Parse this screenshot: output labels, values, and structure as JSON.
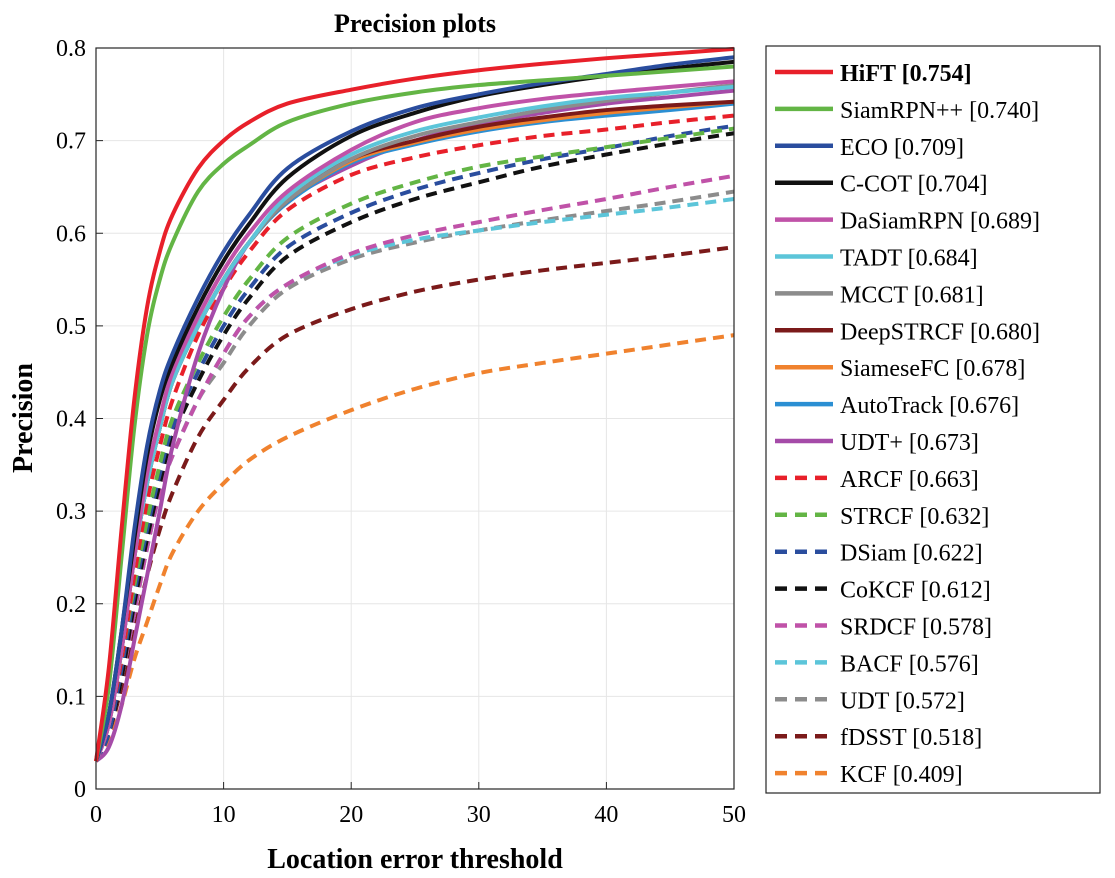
{
  "chart_data": {
    "type": "line",
    "title": "Precision plots",
    "xlabel": "Location error threshold",
    "ylabel": "Precision",
    "xlim": [
      0,
      50
    ],
    "ylim": [
      0,
      0.8
    ],
    "xticks": [
      "0",
      "10",
      "20",
      "30",
      "40",
      "50"
    ],
    "yticks": [
      "0",
      "0.1",
      "0.2",
      "0.3",
      "0.4",
      "0.5",
      "0.6",
      "0.7",
      "0.8"
    ],
    "grid": true,
    "legend_position": "right-outside",
    "x": [
      0,
      1,
      2,
      3,
      4,
      5,
      6,
      8,
      10,
      12,
      15,
      20,
      25,
      30,
      35,
      40,
      45,
      50
    ],
    "series": [
      {
        "name": "HiFT [0.754]",
        "color": "#e8202a",
        "dashed": false,
        "bold": true,
        "values": [
          0.03,
          0.13,
          0.28,
          0.42,
          0.52,
          0.58,
          0.62,
          0.67,
          0.7,
          0.72,
          0.74,
          0.755,
          0.767,
          0.776,
          0.783,
          0.789,
          0.794,
          0.799
        ]
      },
      {
        "name": "SiamRPN++ [0.740]",
        "color": "#63b545",
        "dashed": false,
        "values": [
          0.03,
          0.11,
          0.25,
          0.39,
          0.49,
          0.55,
          0.59,
          0.645,
          0.675,
          0.695,
          0.72,
          0.74,
          0.752,
          0.76,
          0.765,
          0.77,
          0.775,
          0.78
        ]
      },
      {
        "name": "ECO [0.709]",
        "color": "#2a4d9e",
        "dashed": false,
        "values": [
          0.03,
          0.08,
          0.17,
          0.28,
          0.37,
          0.43,
          0.47,
          0.53,
          0.58,
          0.62,
          0.67,
          0.71,
          0.735,
          0.75,
          0.762,
          0.772,
          0.782,
          0.79
        ]
      },
      {
        "name": "C-COT [0.704]",
        "color": "#111111",
        "dashed": false,
        "values": [
          0.03,
          0.08,
          0.17,
          0.27,
          0.36,
          0.42,
          0.46,
          0.52,
          0.57,
          0.61,
          0.66,
          0.705,
          0.73,
          0.748,
          0.76,
          0.77,
          0.778,
          0.785
        ]
      },
      {
        "name": "DaSiamRPN [0.689]",
        "color": "#c052a8",
        "dashed": false,
        "values": [
          0.03,
          0.07,
          0.15,
          0.25,
          0.34,
          0.4,
          0.45,
          0.51,
          0.56,
          0.6,
          0.645,
          0.69,
          0.72,
          0.735,
          0.745,
          0.752,
          0.758,
          0.764
        ]
      },
      {
        "name": "TADT [0.684]",
        "color": "#5cc5d9",
        "dashed": false,
        "values": [
          0.03,
          0.07,
          0.15,
          0.25,
          0.33,
          0.39,
          0.44,
          0.5,
          0.55,
          0.59,
          0.64,
          0.685,
          0.71,
          0.725,
          0.737,
          0.746,
          0.752,
          0.758
        ]
      },
      {
        "name": "MCCT [0.681]",
        "color": "#8c8c8c",
        "dashed": false,
        "values": [
          0.03,
          0.07,
          0.15,
          0.25,
          0.33,
          0.39,
          0.44,
          0.5,
          0.55,
          0.59,
          0.635,
          0.68,
          0.705,
          0.72,
          0.733,
          0.743,
          0.752,
          0.76
        ]
      },
      {
        "name": "DeepSTRCF [0.680]",
        "color": "#7b1a1a",
        "dashed": false,
        "values": [
          0.03,
          0.07,
          0.15,
          0.25,
          0.33,
          0.39,
          0.44,
          0.5,
          0.55,
          0.59,
          0.635,
          0.68,
          0.7,
          0.715,
          0.725,
          0.733,
          0.738,
          0.742
        ]
      },
      {
        "name": "SiameseFC [0.678]",
        "color": "#f0822e",
        "dashed": false,
        "values": [
          0.03,
          0.07,
          0.15,
          0.25,
          0.33,
          0.39,
          0.44,
          0.5,
          0.55,
          0.59,
          0.635,
          0.678,
          0.698,
          0.712,
          0.722,
          0.73,
          0.736,
          0.742
        ]
      },
      {
        "name": "AutoTrack [0.676]",
        "color": "#2b8fd3",
        "dashed": false,
        "values": [
          0.03,
          0.07,
          0.15,
          0.25,
          0.33,
          0.39,
          0.44,
          0.5,
          0.55,
          0.59,
          0.633,
          0.676,
          0.696,
          0.71,
          0.72,
          0.727,
          0.733,
          0.74
        ]
      },
      {
        "name": "UDT+ [0.673]",
        "color": "#a54ba8",
        "dashed": false,
        "values": [
          0.03,
          0.045,
          0.09,
          0.16,
          0.23,
          0.3,
          0.37,
          0.47,
          0.54,
          0.59,
          0.635,
          0.673,
          0.7,
          0.718,
          0.73,
          0.74,
          0.747,
          0.754
        ]
      },
      {
        "name": "ARCF [0.663]",
        "color": "#e8202a",
        "dashed": true,
        "values": [
          0.03,
          0.07,
          0.14,
          0.23,
          0.31,
          0.37,
          0.42,
          0.49,
          0.54,
          0.58,
          0.625,
          0.663,
          0.682,
          0.695,
          0.705,
          0.712,
          0.72,
          0.727
        ]
      },
      {
        "name": "STRCF [0.632]",
        "color": "#63b545",
        "dashed": true,
        "values": [
          0.03,
          0.07,
          0.14,
          0.22,
          0.29,
          0.35,
          0.4,
          0.46,
          0.51,
          0.55,
          0.595,
          0.632,
          0.655,
          0.672,
          0.683,
          0.693,
          0.703,
          0.713
        ]
      },
      {
        "name": "DSiam [0.622]",
        "color": "#2a4d9e",
        "dashed": true,
        "values": [
          0.03,
          0.06,
          0.13,
          0.21,
          0.28,
          0.34,
          0.39,
          0.45,
          0.5,
          0.54,
          0.585,
          0.622,
          0.647,
          0.665,
          0.68,
          0.692,
          0.705,
          0.716
        ]
      },
      {
        "name": "CoKCF [0.612]",
        "color": "#111111",
        "dashed": true,
        "values": [
          0.03,
          0.06,
          0.12,
          0.2,
          0.27,
          0.33,
          0.38,
          0.44,
          0.49,
          0.53,
          0.575,
          0.612,
          0.637,
          0.655,
          0.672,
          0.685,
          0.697,
          0.708
        ]
      },
      {
        "name": "SRDCF [0.578]",
        "color": "#c052a8",
        "dashed": true,
        "values": [
          0.03,
          0.06,
          0.12,
          0.19,
          0.26,
          0.32,
          0.36,
          0.42,
          0.47,
          0.51,
          0.545,
          0.578,
          0.598,
          0.612,
          0.625,
          0.637,
          0.65,
          0.662
        ]
      },
      {
        "name": "BACF [0.576]",
        "color": "#5cc5d9",
        "dashed": true,
        "values": [
          0.03,
          0.06,
          0.12,
          0.19,
          0.26,
          0.32,
          0.36,
          0.42,
          0.47,
          0.51,
          0.545,
          0.576,
          0.593,
          0.603,
          0.612,
          0.62,
          0.628,
          0.637
        ]
      },
      {
        "name": "UDT [0.572]",
        "color": "#8c8c8c",
        "dashed": true,
        "values": [
          0.03,
          0.06,
          0.12,
          0.19,
          0.26,
          0.32,
          0.36,
          0.42,
          0.46,
          0.5,
          0.54,
          0.572,
          0.59,
          0.603,
          0.614,
          0.624,
          0.634,
          0.645
        ]
      },
      {
        "name": "fDSST [0.518]",
        "color": "#7b1a1a",
        "dashed": true,
        "values": [
          0.03,
          0.06,
          0.11,
          0.17,
          0.23,
          0.28,
          0.32,
          0.38,
          0.42,
          0.455,
          0.49,
          0.518,
          0.537,
          0.55,
          0.56,
          0.568,
          0.576,
          0.585
        ]
      },
      {
        "name": "KCF [0.409]",
        "color": "#f0822e",
        "dashed": true,
        "values": [
          0.03,
          0.05,
          0.09,
          0.14,
          0.18,
          0.22,
          0.255,
          0.3,
          0.33,
          0.355,
          0.38,
          0.409,
          0.432,
          0.449,
          0.46,
          0.47,
          0.48,
          0.49
        ]
      }
    ]
  }
}
